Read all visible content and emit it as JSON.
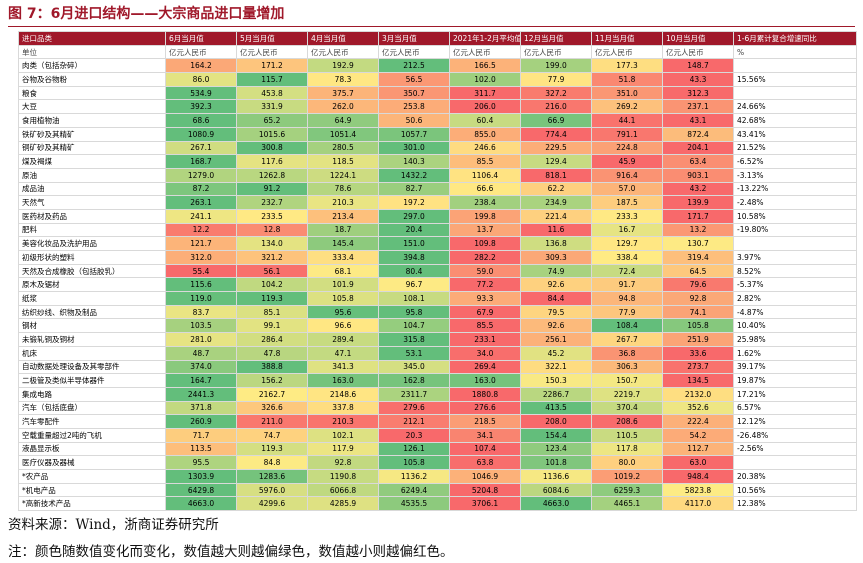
{
  "header": {
    "title": "图 7：6月进口结构——大宗商品进口量增加"
  },
  "table": {
    "columns": [
      "进口品类",
      "6月当月值",
      "5月当月值",
      "4月当月值",
      "3月当月值",
      "2021年1-2月平均值",
      "12月当月值",
      "11月当月值",
      "10月当月值",
      "1-6月累计复合增速同比"
    ],
    "units": [
      "单位",
      "亿元人民币",
      "亿元人民币",
      "亿元人民币",
      "亿元人民币",
      "亿元人民币",
      "亿元人民币",
      "亿元人民币",
      "亿元人民币",
      "%"
    ],
    "rows": [
      {
        "name": "肉类（包括杂碎）",
        "values": [
          "164.2",
          "171.2",
          "192.9",
          "212.5",
          "166.5",
          "199.0",
          "177.3",
          "148.7"
        ]
      },
      {
        "name": "谷物及谷物粉",
        "values": [
          "86.0",
          "115.7",
          "78.3",
          "56.5",
          "102.0",
          "77.9",
          "51.8",
          "43.3"
        ],
        "growth": "15.56%"
      },
      {
        "name": "粮食",
        "values": [
          "534.9",
          "453.8",
          "375.7",
          "350.7",
          "311.7",
          "327.2",
          "351.0",
          "312.3"
        ]
      },
      {
        "name": "大豆",
        "values": [
          "392.3",
          "331.9",
          "262.0",
          "253.8",
          "206.0",
          "216.0",
          "269.2",
          "237.1"
        ],
        "growth": "24.66%"
      },
      {
        "name": "食用植物油",
        "values": [
          "68.6",
          "65.2",
          "64.9",
          "50.6",
          "60.4",
          "66.9",
          "44.1",
          "43.1"
        ],
        "growth": "42.68%"
      },
      {
        "name": "铁矿砂及其精矿",
        "values": [
          "1080.9",
          "1015.6",
          "1051.4",
          "1057.7",
          "855.0",
          "774.4",
          "791.1",
          "872.4"
        ],
        "growth": "43.41%"
      },
      {
        "name": "铜矿砂及其精矿",
        "values": [
          "267.1",
          "300.8",
          "280.5",
          "301.0",
          "246.6",
          "229.5",
          "224.8",
          "204.1"
        ],
        "growth": "21.52%"
      },
      {
        "name": "煤及褐煤",
        "values": [
          "168.7",
          "117.6",
          "118.5",
          "140.3",
          "85.5",
          "129.4",
          "45.9",
          "63.4"
        ],
        "growth": "-6.52%"
      },
      {
        "name": "原油",
        "values": [
          "1279.0",
          "1262.8",
          "1224.1",
          "1432.2",
          "1106.4",
          "818.1",
          "916.4",
          "903.1"
        ],
        "growth": "-3.13%"
      },
      {
        "name": "成品油",
        "values": [
          "87.2",
          "91.2",
          "78.6",
          "82.7",
          "66.6",
          "62.2",
          "57.0",
          "43.2"
        ],
        "growth": "-13.22%"
      },
      {
        "name": "天然气",
        "values": [
          "263.1",
          "232.7",
          "210.3",
          "197.2",
          "238.4",
          "234.9",
          "187.5",
          "139.9"
        ],
        "growth": "-2.48%"
      },
      {
        "name": "医药材及药品",
        "values": [
          "241.1",
          "233.5",
          "213.4",
          "297.0",
          "199.8",
          "221.4",
          "233.3",
          "171.7"
        ],
        "growth": "10.58%"
      },
      {
        "name": "肥料",
        "values": [
          "12.2",
          "12.8",
          "18.7",
          "20.4",
          "13.7",
          "11.6",
          "16.7",
          "13.2"
        ],
        "growth": "-19.80%"
      },
      {
        "name": "美容化妆品及洗护用品",
        "values": [
          "121.7",
          "134.0",
          "145.4",
          "151.0",
          "109.8",
          "136.8",
          "129.7",
          "130.7"
        ]
      },
      {
        "name": "初级形状的塑料",
        "values": [
          "312.0",
          "321.2",
          "333.4",
          "394.8",
          "282.2",
          "309.3",
          "338.4",
          "319.4"
        ],
        "growth": "3.97%"
      },
      {
        "name": "天然及合成橡胶（包括胶乳）",
        "values": [
          "55.4",
          "56.1",
          "68.1",
          "80.4",
          "59.0",
          "74.9",
          "72.4",
          "64.5"
        ],
        "growth": "8.52%"
      },
      {
        "name": "原木及锯材",
        "values": [
          "115.6",
          "104.2",
          "101.9",
          "96.7",
          "77.2",
          "92.6",
          "91.7",
          "79.6"
        ],
        "growth": "-5.37%"
      },
      {
        "name": "纸浆",
        "values": [
          "119.0",
          "119.3",
          "105.8",
          "108.1",
          "93.3",
          "84.4",
          "94.8",
          "92.8"
        ],
        "growth": "2.82%"
      },
      {
        "name": "纺织纱线、织物及制品",
        "values": [
          "83.7",
          "85.1",
          "95.6",
          "95.8",
          "67.9",
          "79.5",
          "77.9",
          "74.1"
        ],
        "growth": "-4.87%"
      },
      {
        "name": "钢材",
        "values": [
          "103.5",
          "99.1",
          "96.6",
          "104.7",
          "85.5",
          "92.6",
          "108.4",
          "105.8"
        ],
        "growth": "10.40%"
      },
      {
        "name": "未锻轧铜及铜材",
        "values": [
          "281.0",
          "286.4",
          "289.4",
          "315.8",
          "233.1",
          "256.1",
          "267.7",
          "251.9"
        ],
        "growth": "25.98%"
      },
      {
        "name": "机床",
        "values": [
          "48.7",
          "47.8",
          "47.1",
          "53.1",
          "34.0",
          "45.2",
          "36.8",
          "33.6"
        ],
        "growth": "1.62%"
      },
      {
        "name": "自动数据处理设备及其零部件",
        "values": [
          "374.0",
          "388.8",
          "341.3",
          "345.0",
          "269.4",
          "322.1",
          "306.3",
          "273.7"
        ],
        "growth": "39.17%"
      },
      {
        "name": "二极管及类似半导体器件",
        "values": [
          "164.7",
          "156.2",
          "163.0",
          "162.8",
          "163.0",
          "150.3",
          "150.7",
          "134.5"
        ],
        "growth": "19.87%"
      },
      {
        "name": "集成电路",
        "values": [
          "2441.3",
          "2162.7",
          "2148.6",
          "2311.7",
          "1880.8",
          "2286.7",
          "2219.7",
          "2132.0"
        ],
        "growth": "17.21%"
      },
      {
        "name": "汽车（包括底盘）",
        "values": [
          "371.8",
          "326.6",
          "337.8",
          "279.6",
          "276.6",
          "413.5",
          "370.4",
          "352.6"
        ],
        "growth": "6.57%"
      },
      {
        "name": "汽车零配件",
        "values": [
          "260.9",
          "211.0",
          "210.3",
          "212.1",
          "218.5",
          "208.0",
          "208.6",
          "222.4"
        ],
        "growth": "12.12%"
      },
      {
        "name": "空载重量超过2吨的飞机",
        "values": [
          "71.7",
          "74.7",
          "102.1",
          "20.3",
          "34.1",
          "154.4",
          "110.5",
          "54.2"
        ],
        "growth": "-26.48%"
      },
      {
        "name": "液晶显示板",
        "values": [
          "113.5",
          "119.3",
          "117.9",
          "126.1",
          "107.4",
          "123.4",
          "117.8",
          "112.7"
        ],
        "growth": "-2.56%"
      },
      {
        "name": "医疗仪器及器械",
        "values": [
          "95.5",
          "84.8",
          "92.8",
          "105.8",
          "63.8",
          "101.8",
          "80.0",
          "63.0"
        ]
      },
      {
        "name": "*农产品",
        "values": [
          "1303.9",
          "1283.6",
          "1190.8",
          "1136.2",
          "1046.9",
          "1136.6",
          "1019.2",
          "948.4"
        ],
        "growth": "20.38%"
      },
      {
        "name": "*机电产品",
        "values": [
          "6429.8",
          "5976.0",
          "6066.8",
          "6249.4",
          "5204.8",
          "6084.6",
          "6259.3",
          "5823.8"
        ],
        "growth": "10.56%"
      },
      {
        "name": "*高新技术产品",
        "values": [
          "4663.0",
          "4299.6",
          "4285.9",
          "4535.5",
          "3706.1",
          "4663.0",
          "4465.1",
          "4117.0"
        ],
        "growth": "12.38%"
      }
    ]
  },
  "footer": {
    "source": "资料来源：Wind，浙商证券研究所",
    "note": "注：颜色随数值变化而变化，数值越大则越偏绿色，数值越小则越偏红色。"
  }
}
